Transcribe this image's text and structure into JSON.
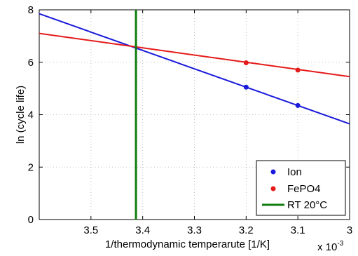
{
  "chart_data": {
    "type": "line",
    "xlabel": "1/thermodynamic temperarute [1/K]",
    "ylabel": "ln (cycle life)",
    "x_multiplier": {
      "base": "x 10",
      "exponent": "-3"
    },
    "xlim": [
      3.6,
      3.0
    ],
    "ylim": [
      0,
      8
    ],
    "x_reversed": true,
    "grid": true,
    "x_ticks": [
      3.5,
      3.4,
      3.3,
      3.2,
      3.1,
      3
    ],
    "x_tick_labels": [
      "3.5",
      "3.4",
      "3.3",
      "3.2",
      "3.1",
      "3"
    ],
    "y_ticks": [
      0,
      2,
      4,
      6,
      8
    ],
    "y_tick_labels": [
      "0",
      "2",
      "4",
      "6",
      "8"
    ],
    "legend_position": "bottom-right",
    "series": [
      {
        "name": "Ion",
        "color": "#1a1adb",
        "points_x": [
          3.2,
          3.1
        ],
        "points_y": [
          5.05,
          4.35
        ],
        "line_x": [
          3.6,
          3.0
        ],
        "line_y": [
          7.85,
          3.65
        ]
      },
      {
        "name": "FePO4",
        "color": "#e51919",
        "points_x": [
          3.2,
          3.1
        ],
        "points_y": [
          5.98,
          5.7
        ],
        "line_x": [
          3.6,
          3.0
        ],
        "line_y": [
          7.1,
          5.45
        ]
      }
    ],
    "vline": {
      "name": "RT 20°C",
      "color": "#0f7d0f",
      "x": 3.413
    }
  }
}
